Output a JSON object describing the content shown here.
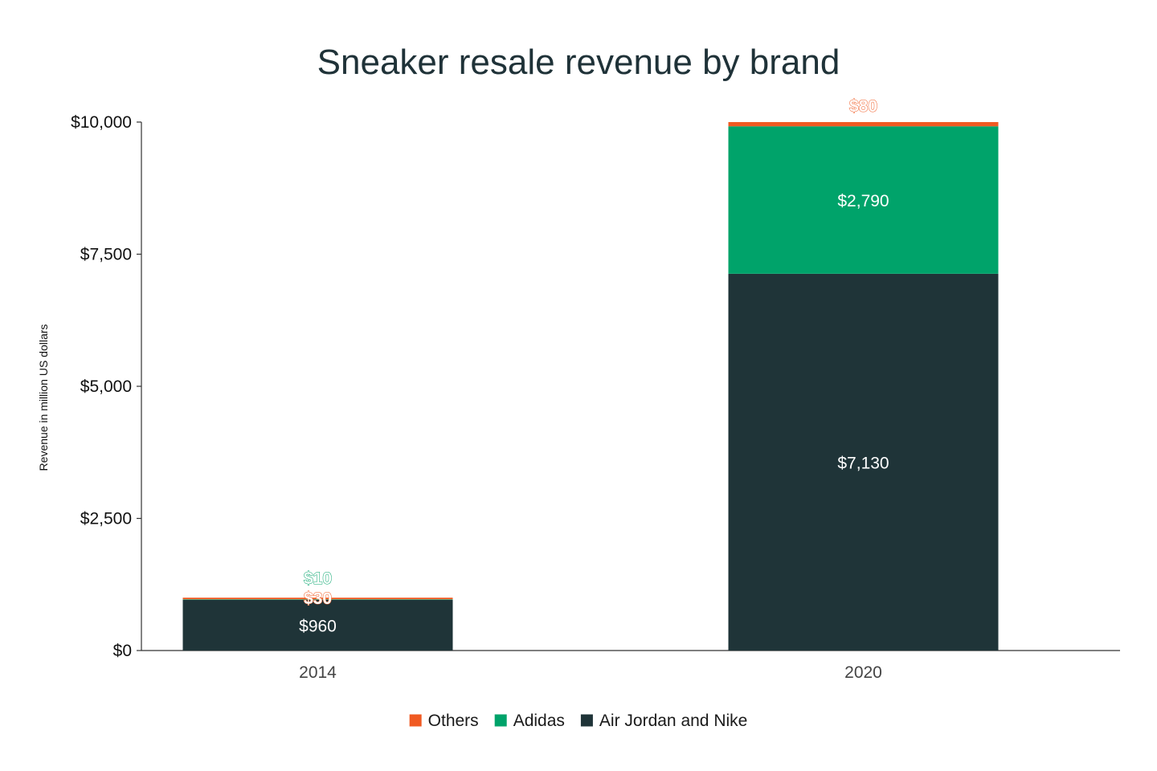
{
  "chart_data": {
    "type": "bar",
    "stacked": true,
    "title": "Sneaker resale revenue by brand",
    "xlabel": "",
    "ylabel": "Revenue in million US dollars",
    "categories": [
      "2014",
      "2020"
    ],
    "series": [
      {
        "name": "Air Jordan and Nike",
        "color": "#1f3438",
        "values": [
          960,
          7130
        ],
        "labels": [
          "$960",
          "$7,130"
        ]
      },
      {
        "name": "Adidas",
        "color": "#00a36a",
        "values": [
          10,
          2790
        ],
        "labels": [
          "$10",
          "$2,790"
        ]
      },
      {
        "name": "Others",
        "color": "#f05a22",
        "values": [
          30,
          80
        ],
        "labels": [
          "$30",
          "$80"
        ]
      }
    ],
    "ylim": [
      0,
      10000
    ],
    "yticks": [
      0,
      2500,
      5000,
      7500,
      10000
    ],
    "ytick_labels": [
      "$0",
      "$2,500",
      "$5,000",
      "$7,500",
      "$10,000"
    ],
    "legend": {
      "position": "bottom",
      "order": [
        "Others",
        "Adidas",
        "Air Jordan and Nike"
      ]
    },
    "grid": false
  }
}
